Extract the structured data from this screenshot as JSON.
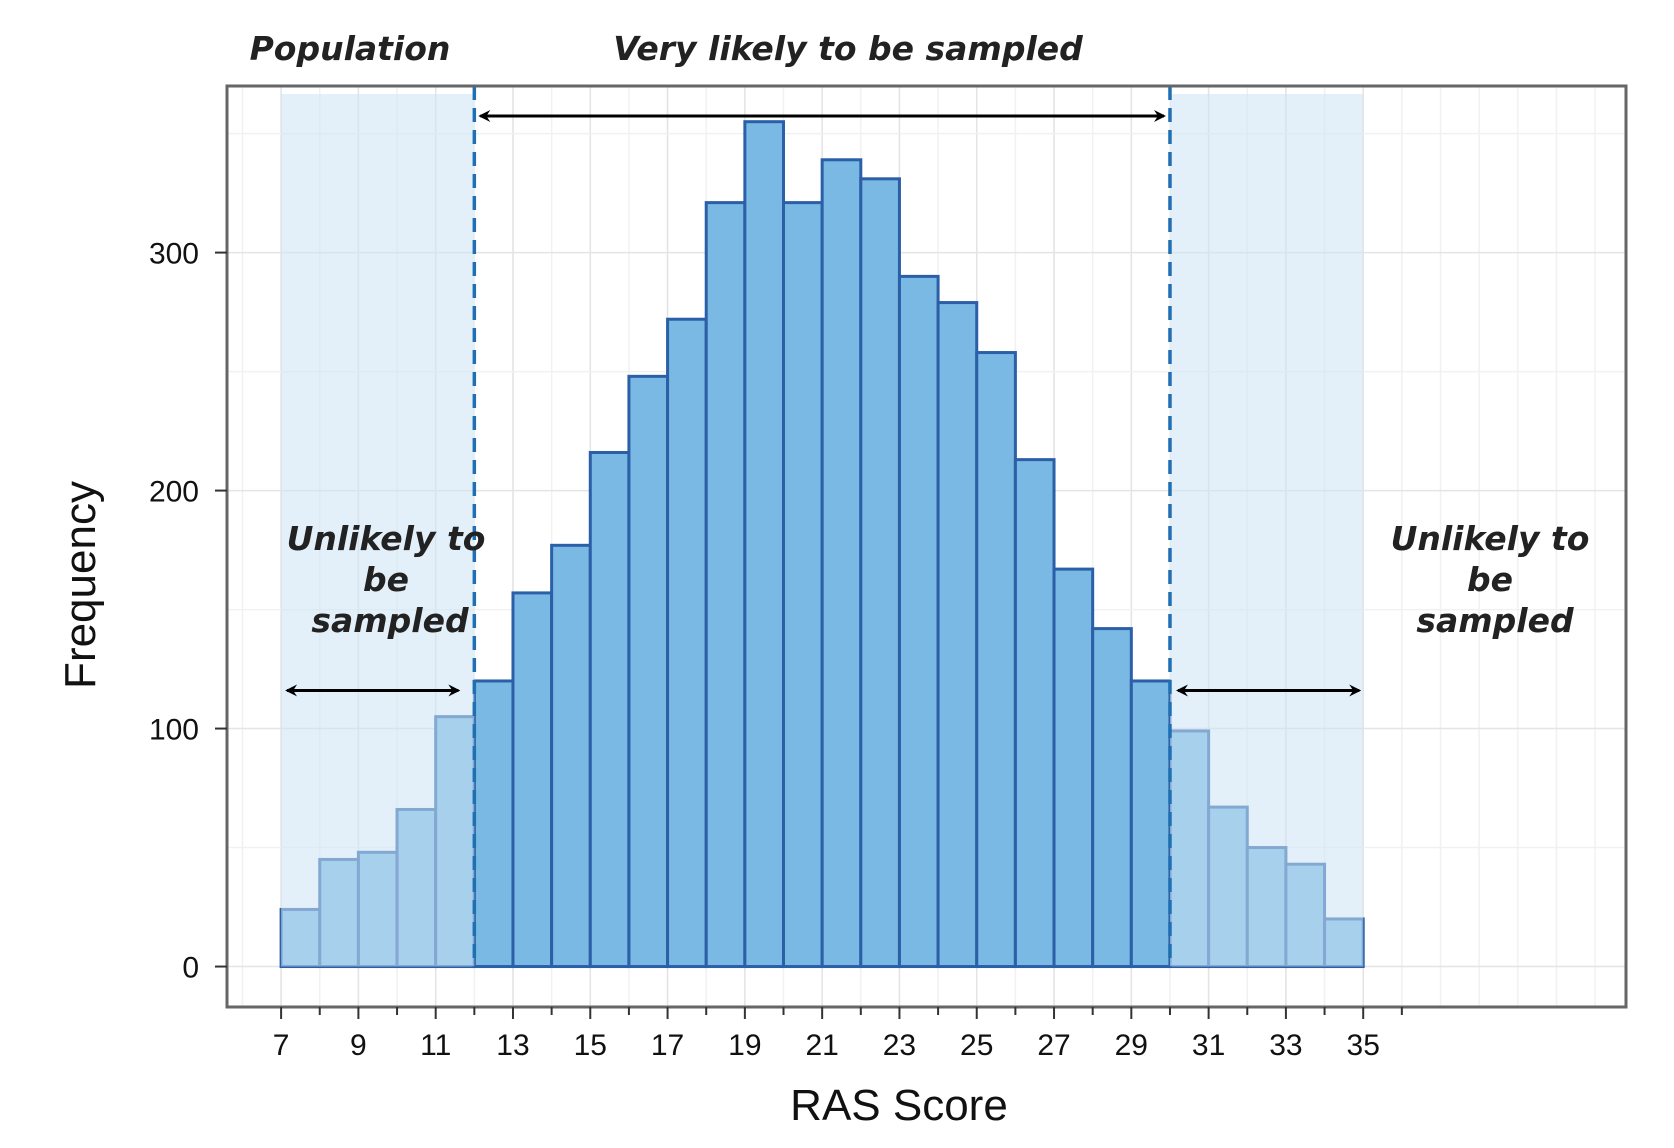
{
  "chart_data": {
    "type": "bar",
    "title": "",
    "xlabel": "RAS Score",
    "ylabel": "Frequency",
    "x_bin_width": 1,
    "xlim": [
      5.6,
      41.8
    ],
    "ylim": [
      -17,
      370
    ],
    "x_ticks": [
      7,
      9,
      11,
      13,
      15,
      17,
      19,
      21,
      23,
      25,
      27,
      29,
      31,
      33,
      35
    ],
    "y_ticks": [
      0,
      100,
      200,
      300
    ],
    "bins": [
      {
        "x": 7,
        "value": 24
      },
      {
        "x": 8,
        "value": 45
      },
      {
        "x": 9,
        "value": 48
      },
      {
        "x": 10,
        "value": 66
      },
      {
        "x": 11,
        "value": 105
      },
      {
        "x": 12,
        "value": 120
      },
      {
        "x": 13,
        "value": 157
      },
      {
        "x": 14,
        "value": 177
      },
      {
        "x": 15,
        "value": 216
      },
      {
        "x": 16,
        "value": 248
      },
      {
        "x": 17,
        "value": 272
      },
      {
        "x": 18,
        "value": 321
      },
      {
        "x": 19,
        "value": 355
      },
      {
        "x": 20,
        "value": 321
      },
      {
        "x": 21,
        "value": 339
      },
      {
        "x": 22,
        "value": 331
      },
      {
        "x": 23,
        "value": 290
      },
      {
        "x": 24,
        "value": 279
      },
      {
        "x": 25,
        "value": 258
      },
      {
        "x": 26,
        "value": 213
      },
      {
        "x": 27,
        "value": 167
      },
      {
        "x": 28,
        "value": 142
      },
      {
        "x": 29,
        "value": 120
      },
      {
        "x": 30,
        "value": 99
      },
      {
        "x": 31,
        "value": 67
      },
      {
        "x": 32,
        "value": 50
      },
      {
        "x": 33,
        "value": 43
      },
      {
        "x": 34,
        "value": 20
      }
    ],
    "shaded_regions": [
      {
        "from": 7,
        "to": 12
      },
      {
        "from": 30,
        "to": 35
      }
    ],
    "cutoffs": [
      12,
      30
    ],
    "annotations": {
      "population": "Population",
      "very_likely": "Very likely to be sampled",
      "unlikely_left": [
        "Unlikely to",
        "be",
        "sampled"
      ],
      "unlikely_right": [
        "Unlikely to",
        "be",
        "sampled"
      ]
    },
    "grid": true,
    "colors": {
      "bar_fill": "#7ab9e3",
      "bar_stroke": "#2b5fa8",
      "shade": "#cce4f4",
      "cutoff_line": "#1f6fb2",
      "arrow": "#000000",
      "frame": "#666666",
      "grid": "#e4e4e4"
    }
  }
}
